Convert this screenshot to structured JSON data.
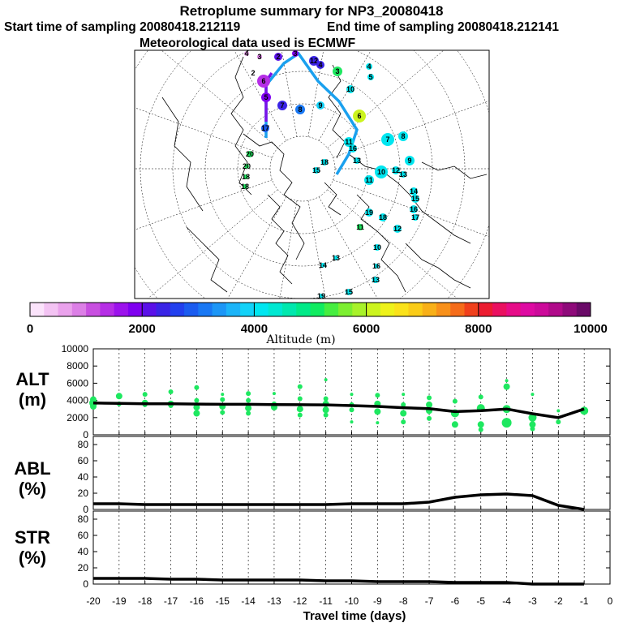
{
  "header": {
    "title": "Retroplume summary for NP3_20080418",
    "start": "Start time of sampling 20080418.212119",
    "end": "End time of sampling 20080418.212141",
    "met": "Meteorological data used is ECMWF"
  },
  "colorbar": {
    "ticks": [
      "0",
      "2000",
      "4000",
      "6000",
      "8000",
      "10000"
    ],
    "label": "Altitude (m)",
    "colors": [
      "#fbe3fb",
      "#f3c3f3",
      "#eaa2ec",
      "#dc7fe6",
      "#c84fe0",
      "#b62ee6",
      "#9c12ec",
      "#7f00f0",
      "#5a10e8",
      "#3a24e6",
      "#2240ee",
      "#1b5cf0",
      "#1978f4",
      "#1c96f6",
      "#1cb4f8",
      "#12d2f8",
      "#00e6f0",
      "#00e8d2",
      "#00e8ae",
      "#00ea88",
      "#10ec60",
      "#46ee40",
      "#7cef30",
      "#a8f22a",
      "#ccf41e",
      "#eef21a",
      "#fae21a",
      "#facc18",
      "#f8b018",
      "#f8901a",
      "#f56c1a",
      "#f0401c",
      "#ec1c30",
      "#ea1060",
      "#e60c88",
      "#de0aa2",
      "#cc0a9a",
      "#b00a8a",
      "#8e0a7a",
      "#6a0a68"
    ]
  },
  "map": {
    "labels": [
      "4",
      "3",
      "2",
      "6",
      "5",
      "7",
      "8",
      "9",
      "10",
      "3",
      "4",
      "5",
      "6",
      "7",
      "8",
      "9",
      "10",
      "11",
      "12",
      "13",
      "14",
      "15",
      "16",
      "17",
      "18",
      "19",
      "20",
      "20",
      "18",
      "18",
      "12",
      "11",
      "10",
      "16",
      "13",
      "15",
      "19",
      "14",
      "13",
      "17",
      "12",
      "4",
      "2",
      "3",
      "11",
      "16",
      "13",
      "18",
      "15"
    ]
  },
  "chart_data": [
    {
      "type": "scatter+line",
      "panel": "ALT",
      "ylabel": "ALT (m)",
      "ylim": [
        0,
        10000
      ],
      "yticks": [
        "0",
        "2000",
        "4000",
        "6000",
        "8000",
        "10000"
      ],
      "line": {
        "x": [
          -20,
          -19,
          -18,
          -17,
          -16,
          -15,
          -14,
          -13,
          -12,
          -11,
          -10,
          -9,
          -8,
          -7,
          -6,
          -5,
          -4,
          -3,
          -2,
          -1
        ],
        "y": [
          3700,
          3650,
          3600,
          3600,
          3580,
          3550,
          3550,
          3520,
          3500,
          3480,
          3400,
          3300,
          3150,
          3050,
          2700,
          2800,
          3000,
          2450,
          2000,
          3000
        ]
      },
      "points": {
        "x": [
          -20,
          -20,
          -20,
          -19,
          -19,
          -18,
          -18,
          -18,
          -17,
          -17,
          -17,
          -16,
          -16,
          -16,
          -16,
          -15,
          -15,
          -15,
          -15,
          -14,
          -14,
          -14,
          -14,
          -13,
          -13,
          -13,
          -12,
          -12,
          -12,
          -12,
          -11,
          -11,
          -11,
          -11,
          -11,
          -10,
          -10,
          -10,
          -10,
          -9,
          -9,
          -9,
          -9,
          -8,
          -8,
          -8,
          -8,
          -7,
          -7,
          -7,
          -7,
          -6,
          -6,
          -6,
          -5,
          -5,
          -5,
          -5,
          -4,
          -4,
          -4,
          -4,
          -3,
          -3,
          -3,
          -3,
          -2,
          -2,
          -1
        ],
        "y": [
          4100,
          3700,
          3300,
          4500,
          3600,
          4700,
          3700,
          3500,
          5000,
          3600,
          3400,
          5500,
          4000,
          3200,
          2500,
          4700,
          4100,
          3300,
          2600,
          4800,
          4000,
          3100,
          2500,
          4800,
          3600,
          3200,
          5600,
          4200,
          3000,
          2300,
          6400,
          4200,
          3600,
          2900,
          2300,
          4700,
          3500,
          2900,
          1500,
          4600,
          3600,
          2700,
          1400,
          4700,
          3500,
          2500,
          1500,
          4300,
          3500,
          2800,
          1900,
          3900,
          2500,
          1200,
          4400,
          3100,
          1200,
          600,
          6300,
          5600,
          3000,
          1400,
          4700,
          2000,
          1200,
          700,
          2800,
          1500,
          2800
        ],
        "r": [
          4,
          5,
          4,
          4,
          3,
          3,
          4,
          3,
          3,
          4,
          3,
          3,
          3,
          4,
          4,
          2,
          3,
          4,
          3,
          3,
          3,
          4,
          3,
          2,
          3,
          4,
          3,
          3,
          4,
          3,
          2,
          3,
          4,
          4,
          3,
          2,
          3,
          3,
          2,
          3,
          4,
          4,
          2,
          2,
          3,
          4,
          3,
          3,
          4,
          4,
          3,
          3,
          5,
          4,
          3,
          5,
          4,
          3,
          2,
          4,
          5,
          6,
          2,
          5,
          4,
          3,
          2,
          3,
          5
        ],
        "color": "#1ee860"
      }
    },
    {
      "type": "line",
      "panel": "ABL",
      "ylabel": "ABL (%)",
      "ylim": [
        0,
        90
      ],
      "yticks": [
        "0",
        "20",
        "40",
        "60",
        "80"
      ],
      "x": [
        -20,
        -19,
        -18,
        -17,
        -16,
        -15,
        -14,
        -13,
        -12,
        -11,
        -10,
        -9,
        -8,
        -7,
        -6,
        -5,
        -4,
        -3,
        -2,
        -1
      ],
      "y": [
        7,
        7,
        6,
        6,
        6,
        6,
        6,
        6,
        6,
        6,
        7,
        7,
        7,
        9,
        15,
        18,
        19,
        17,
        5,
        0
      ]
    },
    {
      "type": "line",
      "panel": "STR",
      "ylabel": "STR (%)",
      "ylim": [
        0,
        90
      ],
      "yticks": [
        "0",
        "20",
        "40",
        "60",
        "80"
      ],
      "x": [
        -20,
        -19,
        -18,
        -17,
        -16,
        -15,
        -14,
        -13,
        -12,
        -11,
        -10,
        -9,
        -8,
        -7,
        -6,
        -5,
        -4,
        -3,
        -2,
        -1
      ],
      "y": [
        7,
        7,
        7,
        6,
        6,
        5,
        5,
        5,
        5,
        4,
        4,
        3,
        3,
        3,
        2,
        2,
        2,
        0,
        0,
        0
      ]
    }
  ],
  "xaxis": {
    "ticks": [
      "-20",
      "-19",
      "-18",
      "-17",
      "-16",
      "-15",
      "-14",
      "-13",
      "-12",
      "-11",
      "-10",
      "-9",
      "-8",
      "-7",
      "-6",
      "-5",
      "-4",
      "-3",
      "-2",
      "-1",
      "0"
    ],
    "label": "Travel time (days)"
  },
  "panels": {
    "alt_label_1": "ALT",
    "alt_label_2": "(m)",
    "abl_label_1": "ABL",
    "abl_label_2": "(%)",
    "str_label_1": "STR",
    "str_label_2": "(%)"
  }
}
